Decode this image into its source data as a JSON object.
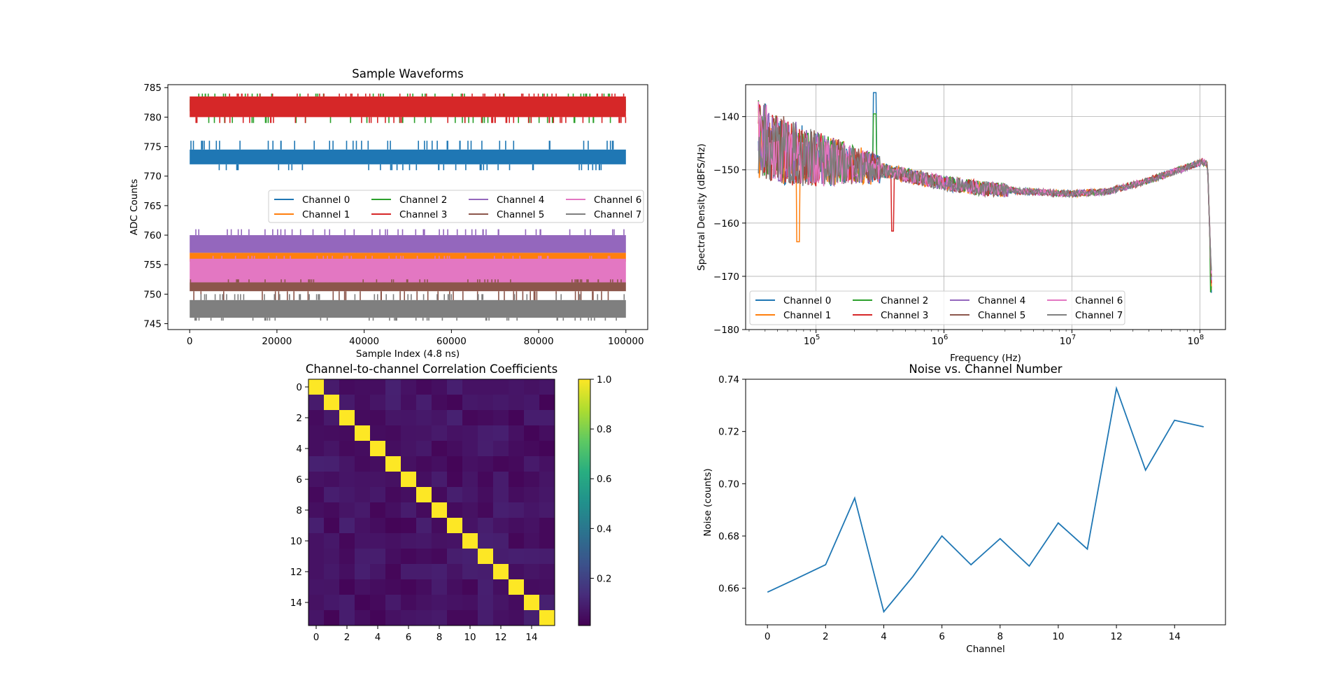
{
  "chart_data": [
    {
      "type": "line",
      "title": "Sample Waveforms",
      "xlabel": "Sample Index (4.8 ns)",
      "ylabel": "ADC Counts",
      "xlim": [
        -5000,
        105000
      ],
      "ylim": [
        744,
        785.5
      ],
      "xticks": [
        0,
        20000,
        40000,
        60000,
        80000,
        100000
      ],
      "yticks": [
        745,
        750,
        755,
        760,
        765,
        770,
        775,
        780,
        785
      ],
      "legend_position": "center-right",
      "legend_columns": 4,
      "series": [
        {
          "name": "Channel 0",
          "color": "#1f77b4",
          "x_range": [
            0,
            100000
          ],
          "band": [
            772,
            774.5
          ],
          "spike_range": [
            771,
            776
          ]
        },
        {
          "name": "Channel 1",
          "color": "#ff7f0e",
          "x_range": [
            0,
            100000
          ],
          "band": [
            755.5,
            757
          ],
          "spike_range": [
            754,
            757
          ]
        },
        {
          "name": "Channel 2",
          "color": "#2ca02c",
          "x_range": [
            0,
            100000
          ],
          "band": [
            781,
            783
          ],
          "spike_range": [
            779,
            784
          ]
        },
        {
          "name": "Channel 3",
          "color": "#d62728",
          "x_range": [
            0,
            100000
          ],
          "band": [
            780,
            783.5
          ],
          "spike_range": [
            779,
            784
          ]
        },
        {
          "name": "Channel 4",
          "color": "#9467bd",
          "x_range": [
            0,
            100000
          ],
          "band": [
            757,
            760
          ],
          "spike_range": [
            756,
            761
          ]
        },
        {
          "name": "Channel 5",
          "color": "#8c564b",
          "x_range": [
            0,
            100000
          ],
          "band": [
            750.5,
            752
          ],
          "spike_range": [
            748,
            752.5
          ]
        },
        {
          "name": "Channel 6",
          "color": "#e377c2",
          "x_range": [
            0,
            100000
          ],
          "band": [
            752,
            756
          ],
          "spike_range": [
            751,
            756.5
          ]
        },
        {
          "name": "Channel 7",
          "color": "#7f7f7f",
          "x_range": [
            0,
            100000
          ],
          "band": [
            746,
            749
          ],
          "spike_range": [
            745.5,
            750
          ]
        }
      ]
    },
    {
      "type": "line",
      "title": "",
      "xlabel": "Frequency (Hz)",
      "ylabel": "Spectral Density (dBFS/Hz)",
      "xscale": "log",
      "xlim": [
        25000000000,
        150000000000
      ],
      "xlim_log": [
        4.45,
        8.2
      ],
      "ylim": [
        -180,
        -134
      ],
      "yticks": [
        -180,
        -170,
        -160,
        -150,
        -140
      ],
      "xticks_log": [
        5,
        6,
        7,
        8
      ],
      "grid": true,
      "legend_position": "lower-left",
      "legend_columns": 4,
      "series_names": [
        "Channel 0",
        "Channel 1",
        "Channel 2",
        "Channel 3",
        "Channel 4",
        "Channel 5",
        "Channel 6",
        "Channel 7"
      ],
      "colors": [
        "#1f77b4",
        "#ff7f0e",
        "#2ca02c",
        "#d62728",
        "#9467bd",
        "#8c564b",
        "#e377c2",
        "#7f7f7f"
      ],
      "envelope": {
        "log10_freq": [
          4.55,
          4.7,
          5.0,
          5.3,
          5.5,
          5.8,
          6.0,
          6.3,
          6.6,
          7.0,
          7.3,
          7.6,
          7.9,
          8.02,
          8.06,
          8.09
        ],
        "level_dbfs": [
          -144,
          -146,
          -148,
          -149,
          -150,
          -151.5,
          -152.5,
          -153.5,
          -154,
          -154.5,
          -154,
          -152,
          -149.5,
          -148.5,
          -149,
          -171
        ]
      },
      "features": [
        {
          "series": "Channel 0",
          "log10_freq": 5.46,
          "level_dbfs": -135.5
        },
        {
          "series": "Channel 2",
          "log10_freq": 5.46,
          "level_dbfs": -139.5
        },
        {
          "series": "Channel 1",
          "log10_freq": 4.86,
          "level_dbfs": -163.5
        },
        {
          "series": "Channel 3",
          "log10_freq": 5.6,
          "level_dbfs": -161.5
        },
        {
          "series": "Channel 2",
          "log10_freq": 8.09,
          "level_dbfs": -173
        }
      ]
    },
    {
      "type": "heatmap",
      "title": "Channel-to-channel Correlation Coefficients",
      "size": 16,
      "xticks": [
        0,
        2,
        4,
        6,
        8,
        10,
        12,
        14
      ],
      "yticks": [
        0,
        2,
        4,
        6,
        8,
        10,
        12,
        14
      ],
      "colormap": "viridis",
      "colorbar_range": [
        0.01,
        1.0
      ],
      "colorbar_ticks": [
        0.2,
        0.4,
        0.6,
        0.8,
        1.0
      ],
      "diagonal_value": 1.0,
      "off_diagonal_range": [
        0.02,
        0.1
      ]
    },
    {
      "type": "line",
      "title": "Noise vs. Channel Number",
      "xlabel": "Channel",
      "ylabel": "Noise (counts)",
      "xlim": [
        -0.75,
        15.75
      ],
      "ylim": [
        0.646,
        0.74
      ],
      "xticks": [
        0,
        2,
        4,
        6,
        8,
        10,
        12,
        14
      ],
      "yticks": [
        0.66,
        0.68,
        0.7,
        0.72,
        0.74
      ],
      "x": [
        0,
        1,
        2,
        3,
        4,
        5,
        6,
        7,
        8,
        9,
        10,
        11,
        12,
        13,
        14,
        15
      ],
      "series": [
        {
          "color": "#1f77b4",
          "values": [
            0.6585,
            0.6637,
            0.669,
            0.6945,
            0.651,
            0.6645,
            0.68,
            0.669,
            0.679,
            0.6685,
            0.685,
            0.675,
            0.7365,
            0.7052,
            0.7243,
            0.7218
          ]
        }
      ]
    }
  ]
}
